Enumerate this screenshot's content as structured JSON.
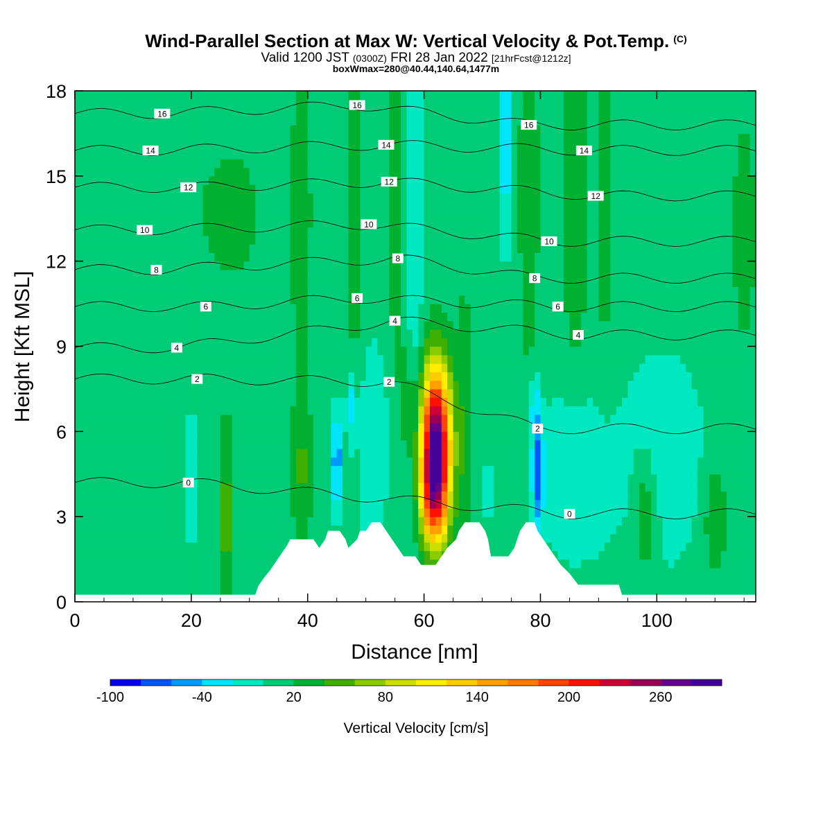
{
  "header": {
    "title": "Wind-Parallel Section at Max W: Vertical Velocity & Pot.Temp.",
    "title_tag": "(C)",
    "valid_prefix": "Valid 1200 JST",
    "valid_utc": "(0300Z)",
    "valid_date": "FRI 28 Jan 2022",
    "forecast": "[21hrFcst@1212z]",
    "box_info": "boxWmax=280@40.44,140.64,1477m"
  },
  "chart_data": {
    "type": "heatmap",
    "xlabel": "Distance [nm]",
    "ylabel": "Height [Kft MSL]",
    "xlim": [
      0,
      117
    ],
    "ylim": [
      0,
      18
    ],
    "x_ticks": [
      0,
      20,
      40,
      60,
      80,
      100
    ],
    "y_ticks": [
      0,
      3,
      6,
      9,
      12,
      15,
      18
    ],
    "colorbar": {
      "title": "Vertical Velocity [cm/s]",
      "levels": [
        -100,
        -80,
        -60,
        -40,
        -20,
        0,
        20,
        40,
        60,
        80,
        100,
        120,
        140,
        160,
        180,
        200,
        220,
        240,
        260,
        280,
        300
      ],
      "labels": [
        "-100",
        "-40",
        "20",
        "80",
        "140",
        "200",
        "260"
      ],
      "colors": [
        "#0000ee",
        "#0055ff",
        "#0099ff",
        "#00e5ff",
        "#00e8c0",
        "#00cc77",
        "#00b030",
        "#40b000",
        "#88cc00",
        "#ccdd00",
        "#ffee00",
        "#ffcc00",
        "#ffa000",
        "#ff7a00",
        "#ff4400",
        "#ff1100",
        "#cc0033",
        "#990055",
        "#660088",
        "#440099"
      ]
    },
    "potential_temperature": {
      "units": "C",
      "contour_labels": [
        {
          "text": "16",
          "x": 15,
          "y": 17.2
        },
        {
          "text": "16",
          "x": 48.5,
          "y": 17.5
        },
        {
          "text": "16",
          "x": 78,
          "y": 16.8
        },
        {
          "text": "14",
          "x": 13,
          "y": 15.9
        },
        {
          "text": "14",
          "x": 53.5,
          "y": 16.1
        },
        {
          "text": "14",
          "x": 87.5,
          "y": 15.9
        },
        {
          "text": "12",
          "x": 19.5,
          "y": 14.6
        },
        {
          "text": "12",
          "x": 54,
          "y": 14.8
        },
        {
          "text": "12",
          "x": 89.5,
          "y": 14.3
        },
        {
          "text": "10",
          "x": 12,
          "y": 13.1
        },
        {
          "text": "10",
          "x": 50.5,
          "y": 13.3
        },
        {
          "text": "10",
          "x": 81.5,
          "y": 12.7
        },
        {
          "text": "8",
          "x": 14,
          "y": 11.7
        },
        {
          "text": "8",
          "x": 55.5,
          "y": 12.1
        },
        {
          "text": "8",
          "x": 79,
          "y": 11.4
        },
        {
          "text": "6",
          "x": 22.5,
          "y": 10.4
        },
        {
          "text": "6",
          "x": 48.5,
          "y": 10.7
        },
        {
          "text": "6",
          "x": 83,
          "y": 10.4
        },
        {
          "text": "4",
          "x": 17.5,
          "y": 8.95
        },
        {
          "text": "4",
          "x": 55,
          "y": 9.9
        },
        {
          "text": "4",
          "x": 86.5,
          "y": 9.4
        },
        {
          "text": "2",
          "x": 21,
          "y": 7.85
        },
        {
          "text": "2",
          "x": 54,
          "y": 7.75
        },
        {
          "text": "2",
          "x": 79.5,
          "y": 6.1
        },
        {
          "text": "0",
          "x": 19.5,
          "y": 4.2
        },
        {
          "text": "0",
          "x": 85,
          "y": 3.1
        }
      ]
    },
    "terrain_kft": [
      [
        0,
        0.25
      ],
      [
        31,
        0.25
      ],
      [
        31.5,
        0.55
      ],
      [
        32.5,
        0.85
      ],
      [
        33.5,
        1.1
      ],
      [
        34.5,
        1.4
      ],
      [
        35.5,
        1.7
      ],
      [
        36.5,
        2.0
      ],
      [
        37,
        2.2
      ],
      [
        41,
        2.2
      ],
      [
        42,
        1.9
      ],
      [
        43,
        2.2
      ],
      [
        43.5,
        2.5
      ],
      [
        45.5,
        2.5
      ],
      [
        46.5,
        2.2
      ],
      [
        47,
        1.9
      ],
      [
        48.5,
        2.2
      ],
      [
        49,
        2.5
      ],
      [
        50,
        2.5
      ],
      [
        51,
        2.8
      ],
      [
        52.5,
        2.8
      ],
      [
        53.5,
        2.5
      ],
      [
        54.5,
        2.2
      ],
      [
        55.5,
        1.9
      ],
      [
        56.5,
        1.6
      ],
      [
        58.5,
        1.6
      ],
      [
        59.5,
        1.3
      ],
      [
        61,
        1.3
      ],
      [
        62,
        1.3
      ],
      [
        63,
        1.6
      ],
      [
        64,
        1.9
      ],
      [
        65.5,
        2.2
      ],
      [
        66,
        2.5
      ],
      [
        67,
        2.8
      ],
      [
        69.5,
        2.8
      ],
      [
        70.5,
        2.5
      ],
      [
        71,
        2.2
      ],
      [
        71.5,
        1.6
      ],
      [
        74.5,
        1.6
      ],
      [
        75.5,
        1.9
      ],
      [
        76,
        2.2
      ],
      [
        76.5,
        2.5
      ],
      [
        77.5,
        2.8
      ],
      [
        79,
        2.8
      ],
      [
        79.5,
        2.5
      ],
      [
        80.5,
        2.2
      ],
      [
        81.5,
        1.9
      ],
      [
        82.5,
        1.6
      ],
      [
        83.5,
        1.3
      ],
      [
        85,
        1.0
      ],
      [
        86.5,
        0.6
      ],
      [
        93.5,
        0.6
      ],
      [
        94,
        0.25
      ],
      [
        117,
        0.25
      ]
    ],
    "w_field": [
      {
        "x": 62,
        "y": 5.5,
        "sx": 1.8,
        "sy": 2.0,
        "w": 280
      },
      {
        "x": 61.5,
        "y": 3.5,
        "sx": 1.6,
        "sy": 1.2,
        "w": 80
      },
      {
        "x": 45,
        "y": 5.0,
        "sx": 0.6,
        "sy": 1.2,
        "w": -70
      },
      {
        "x": 47.5,
        "y": 7.0,
        "sx": 0.6,
        "sy": 1.0,
        "w": -40
      },
      {
        "x": 79.5,
        "y": 4.5,
        "sx": 0.7,
        "sy": 1.3,
        "w": -80
      },
      {
        "x": 79,
        "y": 7.0,
        "sx": 0.6,
        "sy": 0.8,
        "w": -40
      },
      {
        "x": 71,
        "y": 4.0,
        "sx": 0.5,
        "sy": 0.6,
        "w": -40
      },
      {
        "x": 74,
        "y": 16.5,
        "sx": 0.7,
        "sy": 2.5,
        "w": -50
      },
      {
        "x": 58,
        "y": 12.0,
        "sx": 1.2,
        "sy": 6.0,
        "w": -30
      },
      {
        "x": 101,
        "y": 5.0,
        "sx": 5.0,
        "sy": 2.5,
        "w": -25
      },
      {
        "x": 86,
        "y": 4.5,
        "sx": 4.0,
        "sy": 2.0,
        "w": -30
      },
      {
        "x": 51,
        "y": 5.5,
        "sx": 2.0,
        "sy": 2.5,
        "w": -25
      },
      {
        "x": 26,
        "y": 3.0,
        "sx": 0.8,
        "sy": 2.0,
        "w": 45
      },
      {
        "x": 39,
        "y": 4.5,
        "sx": 1.3,
        "sy": 1.8,
        "w": 30
      },
      {
        "x": 67,
        "y": 6.0,
        "sx": 1.2,
        "sy": 4.0,
        "w": 25
      },
      {
        "x": 57,
        "y": 7.5,
        "sx": 1.0,
        "sy": 2.0,
        "w": 30
      },
      {
        "x": 98,
        "y": 3.2,
        "sx": 1.5,
        "sy": 1.5,
        "w": 40
      },
      {
        "x": 110,
        "y": 3.0,
        "sx": 1.5,
        "sy": 1.5,
        "w": 30
      },
      {
        "x": 39,
        "y": 14.0,
        "sx": 0.9,
        "sy": 5.0,
        "w": 30
      },
      {
        "x": 48,
        "y": 14.0,
        "sx": 0.9,
        "sy": 5.0,
        "w": 30
      },
      {
        "x": 55,
        "y": 14.5,
        "sx": 0.9,
        "sy": 4.0,
        "w": 30
      },
      {
        "x": 78,
        "y": 14.5,
        "sx": 1.2,
        "sy": 4.5,
        "w": 30
      },
      {
        "x": 86,
        "y": 14.0,
        "sx": 1.5,
        "sy": 4.5,
        "w": 30
      },
      {
        "x": 91,
        "y": 14.0,
        "sx": 1.0,
        "sy": 4.0,
        "w": 25
      },
      {
        "x": 115,
        "y": 13.0,
        "sx": 1.5,
        "sy": 3.0,
        "w": 25
      },
      {
        "x": 10,
        "y": 14.0,
        "sx": 12.0,
        "sy": 5.0,
        "w": 10
      },
      {
        "x": 30,
        "y": 13.5,
        "sx": 8.0,
        "sy": 5.0,
        "w": 10
      },
      {
        "x": 20,
        "y": 5.0,
        "sx": 1.2,
        "sy": 3.0,
        "w": -15
      }
    ]
  }
}
